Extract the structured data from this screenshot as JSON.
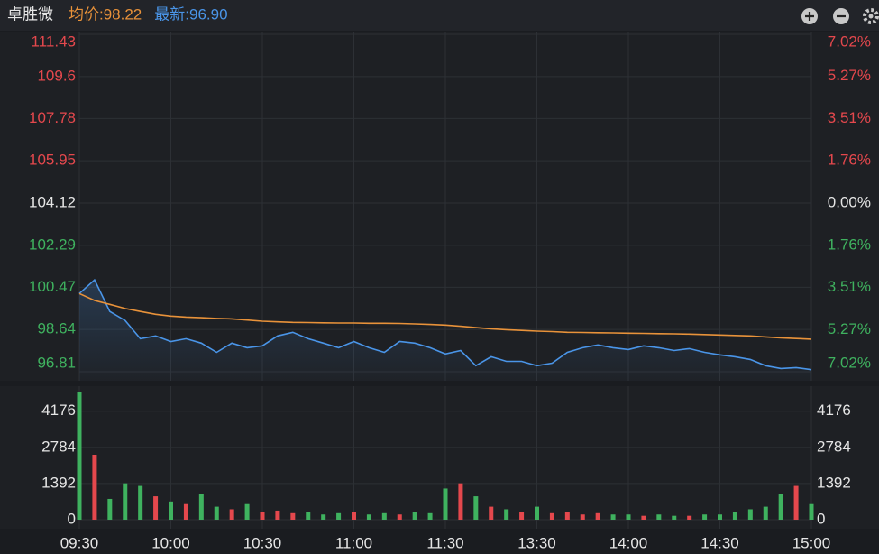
{
  "chart_data": [
    {
      "type": "line",
      "title": "卓胜微",
      "x": [
        0,
        5,
        10,
        15,
        20,
        25,
        30,
        35,
        40,
        45,
        50,
        55,
        60,
        65,
        70,
        75,
        80,
        85,
        90,
        95,
        100,
        105,
        110,
        115,
        120,
        125,
        130,
        135,
        140,
        145,
        150,
        155,
        160,
        165,
        170,
        175,
        180,
        185,
        190,
        195,
        200,
        205,
        210,
        215,
        220,
        225,
        230,
        235,
        240
      ],
      "series": [
        {
          "name": "均价:98.22",
          "color": "#e8923a",
          "values": [
            100.2,
            99.9,
            99.73,
            99.55,
            99.42,
            99.3,
            99.22,
            99.18,
            99.15,
            99.12,
            99.1,
            99.05,
            99.0,
            98.97,
            98.95,
            98.94,
            98.93,
            98.92,
            98.92,
            98.91,
            98.91,
            98.9,
            98.88,
            98.86,
            98.83,
            98.78,
            98.72,
            98.67,
            98.63,
            98.6,
            98.57,
            98.55,
            98.52,
            98.51,
            98.5,
            98.49,
            98.48,
            98.47,
            98.46,
            98.45,
            98.44,
            98.42,
            98.4,
            98.38,
            98.36,
            98.32,
            98.28,
            98.25,
            98.22
          ]
        },
        {
          "name": "最新:96.90",
          "color": "#4a95e8",
          "values": [
            100.2,
            100.79,
            99.42,
            99.03,
            98.24,
            98.36,
            98.12,
            98.24,
            98.05,
            97.65,
            98.05,
            97.85,
            97.93,
            98.36,
            98.52,
            98.24,
            98.05,
            97.85,
            98.12,
            97.85,
            97.65,
            98.12,
            98.05,
            97.85,
            97.58,
            97.73,
            97.07,
            97.46,
            97.26,
            97.26,
            97.07,
            97.18,
            97.65,
            97.85,
            97.97,
            97.85,
            97.77,
            97.93,
            97.85,
            97.73,
            97.81,
            97.65,
            97.54,
            97.46,
            97.34,
            97.07,
            96.95,
            96.99,
            96.9
          ]
        }
      ],
      "xlim": [
        0,
        240
      ],
      "xticks": [
        {
          "value": 0,
          "label": "09:30"
        },
        {
          "value": 30,
          "label": "10:00"
        },
        {
          "value": 60,
          "label": "10:30"
        },
        {
          "value": 90,
          "label": "11:00"
        },
        {
          "value": 120,
          "label": "11:30"
        },
        {
          "value": 150,
          "label": "13:30"
        },
        {
          "value": 180,
          "label": "14:00"
        },
        {
          "value": 210,
          "label": "14:30"
        },
        {
          "value": 240,
          "label": "15:00"
        }
      ],
      "ylim": [
        96.81,
        111.43
      ],
      "yticks": [
        111.43,
        109.6,
        107.78,
        105.95,
        104.12,
        102.29,
        100.47,
        98.64,
        96.81
      ],
      "ytick_colors": [
        "#e5484d",
        "#e5484d",
        "#e5484d",
        "#e5484d",
        "#e6e6e6",
        "#3fb25f",
        "#3fb25f",
        "#3fb25f",
        "#3fb25f"
      ],
      "y2lim": [
        -7.02,
        7.02
      ],
      "y2ticks": [
        {
          "value": 7.02,
          "label": "7.02%"
        },
        {
          "value": 5.27,
          "label": "5.27%"
        },
        {
          "value": 3.51,
          "label": "3.51%"
        },
        {
          "value": 1.76,
          "label": "1.76%"
        },
        {
          "value": 0,
          "label": "0.00%"
        },
        {
          "value": -1.76,
          "label": "1.76%"
        },
        {
          "value": -3.51,
          "label": "3.51%"
        },
        {
          "value": -5.27,
          "label": "5.27%"
        },
        {
          "value": -7.02,
          "label": "7.02%"
        }
      ],
      "grid": true
    },
    {
      "type": "bar",
      "x": [
        0,
        5,
        10,
        15,
        20,
        25,
        30,
        35,
        40,
        45,
        50,
        55,
        60,
        65,
        70,
        75,
        80,
        85,
        90,
        95,
        100,
        105,
        110,
        115,
        120,
        125,
        130,
        135,
        140,
        145,
        150,
        155,
        160,
        165,
        170,
        175,
        180,
        185,
        190,
        195,
        200,
        205,
        210,
        215,
        220,
        225,
        230,
        235,
        240
      ],
      "values": [
        4900,
        2500,
        800,
        1400,
        1300,
        900,
        700,
        600,
        1000,
        500,
        400,
        600,
        300,
        350,
        250,
        300,
        200,
        250,
        300,
        200,
        250,
        200,
        300,
        250,
        1200,
        1400,
        900,
        500,
        400,
        300,
        500,
        250,
        300,
        200,
        250,
        200,
        200,
        150,
        200,
        150,
        150,
        200,
        200,
        300,
        400,
        500,
        1000,
        1300,
        600
      ],
      "colors": [
        "#3fb25f",
        "#e5484d",
        "#3fb25f",
        "#3fb25f",
        "#3fb25f",
        "#e5484d",
        "#3fb25f",
        "#e5484d",
        "#3fb25f",
        "#3fb25f",
        "#e5484d",
        "#3fb25f",
        "#e5484d",
        "#e5484d",
        "#e5484d",
        "#3fb25f",
        "#3fb25f",
        "#3fb25f",
        "#e5484d",
        "#3fb25f",
        "#3fb25f",
        "#e5484d",
        "#3fb25f",
        "#3fb25f",
        "#3fb25f",
        "#e5484d",
        "#3fb25f",
        "#e5484d",
        "#3fb25f",
        "#e5484d",
        "#3fb25f",
        "#e5484d",
        "#e5484d",
        "#e5484d",
        "#e5484d",
        "#3fb25f",
        "#3fb25f",
        "#e5484d",
        "#3fb25f",
        "#3fb25f",
        "#e5484d",
        "#3fb25f",
        "#3fb25f",
        "#3fb25f",
        "#3fb25f",
        "#3fb25f",
        "#3fb25f",
        "#e5484d",
        "#3fb25f"
      ],
      "xlim": [
        0,
        240
      ],
      "ylim": [
        0,
        5000
      ],
      "yticks": [
        0,
        1392,
        2784,
        4176
      ],
      "grid": true
    }
  ]
}
